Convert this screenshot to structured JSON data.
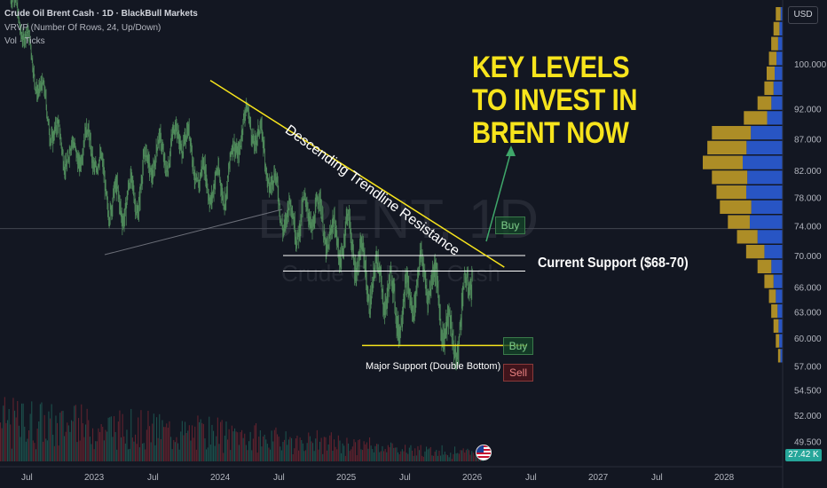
{
  "header": {
    "title": "Crude Oil Brent Cash · 1D · BlackBull Markets",
    "vrvp": "VRVP (Number Of Rows, 24, Up/Down)",
    "vol": "Vol · Ticks"
  },
  "watermark": {
    "symbol": "BRENT, 1D",
    "name": "Crude Oil Brent Cash"
  },
  "headline": {
    "line1": "KEY LEVELS",
    "line2": "TO INVEST IN",
    "line3": "BRENT NOW"
  },
  "annotations": {
    "trendline": "Descending Trendline Resistance",
    "current_support": "Current Support ($68-70)",
    "major_support": "Major Support (Double Bottom)",
    "buy_upper": "Buy",
    "buy_lower": "Buy",
    "sell": "Sell"
  },
  "price_axis": {
    "currency": "USD",
    "volume_badge": "27.42 K"
  },
  "colors": {
    "background": "#131722",
    "candle": "#4f8a5b",
    "trendline": "#f7e41c",
    "headline": "#f7e41c",
    "profile_up": "#2b5cd6",
    "profile_down": "#c9a227",
    "volume_up": "#1f5a53",
    "volume_down": "#6e2430",
    "arrow": "#3fa76a"
  },
  "chart_data": {
    "type": "line",
    "series": [
      {
        "x": [
          "2022-06",
          "2022-08",
          "2022-10",
          "2022-12",
          "2023-02",
          "2023-04",
          "2023-06",
          "2023-08",
          "2023-10",
          "2023-12",
          "2024-02",
          "2024-04",
          "2024-06",
          "2024-08",
          "2024-10",
          "2024-12",
          "2025-02",
          "2025-04",
          "2025-06",
          "2025-08",
          "2025-10",
          "2025-12",
          "2026-02"
        ],
        "values": [
          112,
          98,
          92,
          82,
          84,
          80,
          75,
          86,
          90,
          77,
          82,
          89,
          83,
          79,
          73,
          73,
          76,
          63,
          67,
          66,
          64,
          62,
          69
        ]
      }
    ],
    "x_ticks": [
      "Jul",
      "2023",
      "Jul",
      "2024",
      "Jul",
      "2025",
      "Jul",
      "2026",
      "Jul",
      "2027",
      "Jul",
      "2028"
    ],
    "y_ticks": [
      100,
      92,
      87,
      82,
      78,
      74,
      70,
      66,
      63,
      60,
      57,
      54.5,
      52,
      49.5
    ],
    "y_tick_labels": [
      "100.000",
      "92.000",
      "87.000",
      "82.000",
      "78.000",
      "74.000",
      "70.000",
      "66.000",
      "63.000",
      "60.000",
      "57.000",
      "54.500",
      "52.000",
      "49.500"
    ],
    "ylim": [
      48.5,
      109
    ],
    "scale": "log",
    "grid": false,
    "current_price_line": 73.6,
    "support_zone": [
      68,
      70
    ],
    "major_support": 59.2,
    "trendline_resistance": [
      {
        "x": "2024-01",
        "y": 97
      },
      {
        "x": "2026-05",
        "y": 68.5
      }
    ],
    "volume_profile_rows": 24
  }
}
